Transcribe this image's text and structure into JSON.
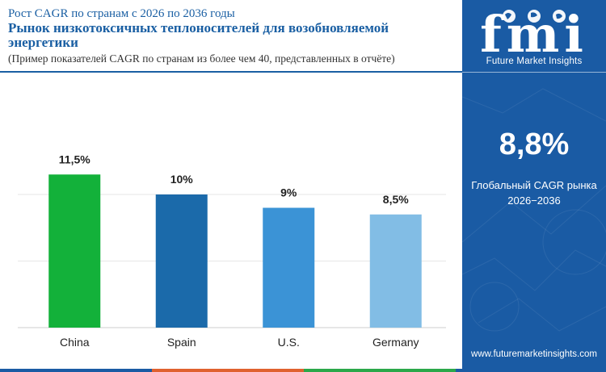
{
  "header": {
    "subtitle": "Рост CAGR по странам с 2026 по 2036 годы",
    "title": "Рынок низкотоксичных теплоносителей для возобновляемой энергетики",
    "note": "Пример показателей CAGR по странам из более чем 40, представленных в отчёте"
  },
  "brand": {
    "name": "Future Market Insights",
    "logo_letters": "fmi",
    "website": "www.futuremarketinsights.com"
  },
  "global": {
    "value": "8,8%",
    "label_line1": "Глобальный CAGR рынка",
    "label_line2": "2026−2036"
  },
  "colors": {
    "panel": "#1a5ba4",
    "title": "#1a5fa3",
    "gridline": "#e6e6e6",
    "bottom_bar": [
      "#1a5ba4",
      "#e0612f",
      "#2ba84a",
      "#1a5ba4"
    ]
  },
  "chart_data": {
    "type": "bar",
    "categories": [
      "China",
      "Spain",
      "U.S.",
      "Germany"
    ],
    "values": [
      11.5,
      10,
      9,
      8.5
    ],
    "value_labels": [
      "11,5%",
      "10%",
      "9%",
      "8,5%"
    ],
    "bar_colors": [
      "#13b13a",
      "#1b6aaa",
      "#3b93d6",
      "#82bde5"
    ],
    "title": "",
    "xlabel": "",
    "ylabel": "",
    "ylim": [
      0,
      13
    ],
    "grid": true,
    "gridlines": [
      0,
      5,
      10
    ]
  }
}
